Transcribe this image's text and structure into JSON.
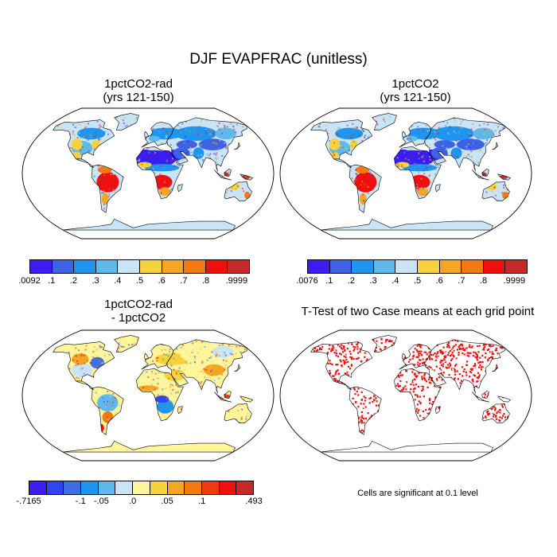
{
  "title": "DJF EVAPFRAC (unitless)",
  "panels": [
    {
      "title_line1": "1pctCO2-rad",
      "title_line2": "(yrs 121-150)"
    },
    {
      "title_line1": "1pctCO2",
      "title_line2": "(yrs 121-150)"
    },
    {
      "title_line1": "1pctCO2-rad",
      "title_line2": "- 1pctCO2"
    },
    {
      "title_line1": "T-Test of two Case means at each grid point"
    }
  ],
  "colorbars": [
    {
      "labels": [
        ".0092",
        ".1",
        ".2",
        ".3",
        ".4",
        ".5",
        ".6",
        ".7",
        ".8",
        ".9999"
      ],
      "colors": [
        "#3b1df0",
        "#3d62e6",
        "#1e96f0",
        "#5fb8ea",
        "#c9e4f6",
        "#f7d23c",
        "#f5a623",
        "#f27a10",
        "#ee0f0f",
        "#c82828"
      ]
    },
    {
      "labels": [
        ".0076",
        ".1",
        ".2",
        ".3",
        ".4",
        ".5",
        ".6",
        ".7",
        ".8",
        ".9999"
      ],
      "colors": [
        "#3b1df0",
        "#3d62e6",
        "#1e96f0",
        "#5fb8ea",
        "#c9e4f6",
        "#f7d23c",
        "#f5a623",
        "#f27a10",
        "#ee0f0f",
        "#c82828"
      ]
    },
    {
      "labels": [
        "-.7165",
        "-.1",
        "-.05",
        ".0",
        ".05",
        ".1",
        ".493"
      ],
      "colors": [
        "#3b1df0",
        "#2f45ee",
        "#3d6ee6",
        "#1e96f0",
        "#5fb8ea",
        "#c9e4f6",
        "#fff59a",
        "#f7d23c",
        "#f5a623",
        "#f27a10",
        "#ee3a10",
        "#ee0f0f",
        "#c82828"
      ]
    }
  ],
  "significance_note": "Cells are significant at 0.1 level"
}
